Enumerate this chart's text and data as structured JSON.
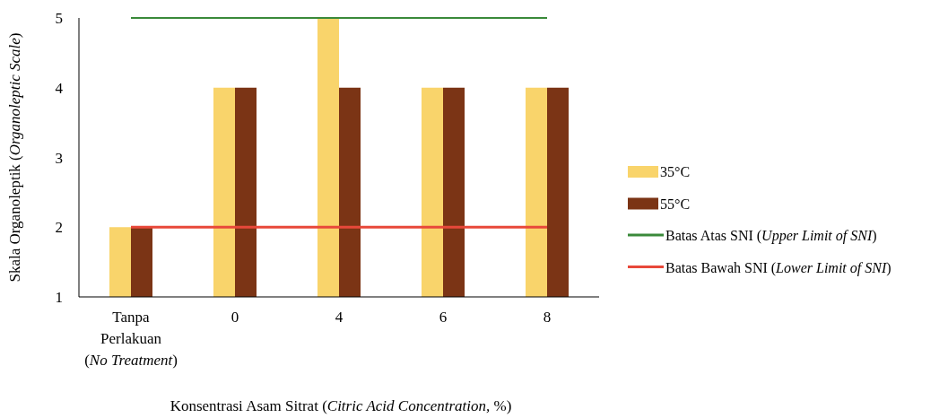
{
  "chart_data": {
    "type": "bar",
    "xlabel": "Konsentrasi Asam Sitrat (Citric Acid Concentration, %)",
    "ylabel": "Skala Organoleptik (Organoleptic Scale)",
    "categories": [
      "Tanpa Perlakuan (No Treatment)",
      "0",
      "4",
      "6",
      "8"
    ],
    "series": [
      {
        "name": "35°C",
        "color": "#f9d46b",
        "values": [
          2,
          4,
          5,
          4,
          4
        ]
      },
      {
        "name": "55°C",
        "color": "#7b3415",
        "values": [
          2,
          4,
          4,
          4,
          4
        ]
      }
    ],
    "ylim": [
      1,
      5
    ],
    "yticks": [
      1,
      2,
      3,
      4,
      5
    ],
    "grid": false,
    "legend": "right",
    "ref_lines": [
      {
        "axis": "y",
        "value": 5,
        "label": "Batas Atas SNI (Upper Limit of SNI)",
        "color": "#3a8a3a"
      },
      {
        "axis": "y",
        "value": 2,
        "label": "Batas Bawah SNI (Lower Limit of SNI)",
        "color": "#e8483a"
      }
    ]
  }
}
